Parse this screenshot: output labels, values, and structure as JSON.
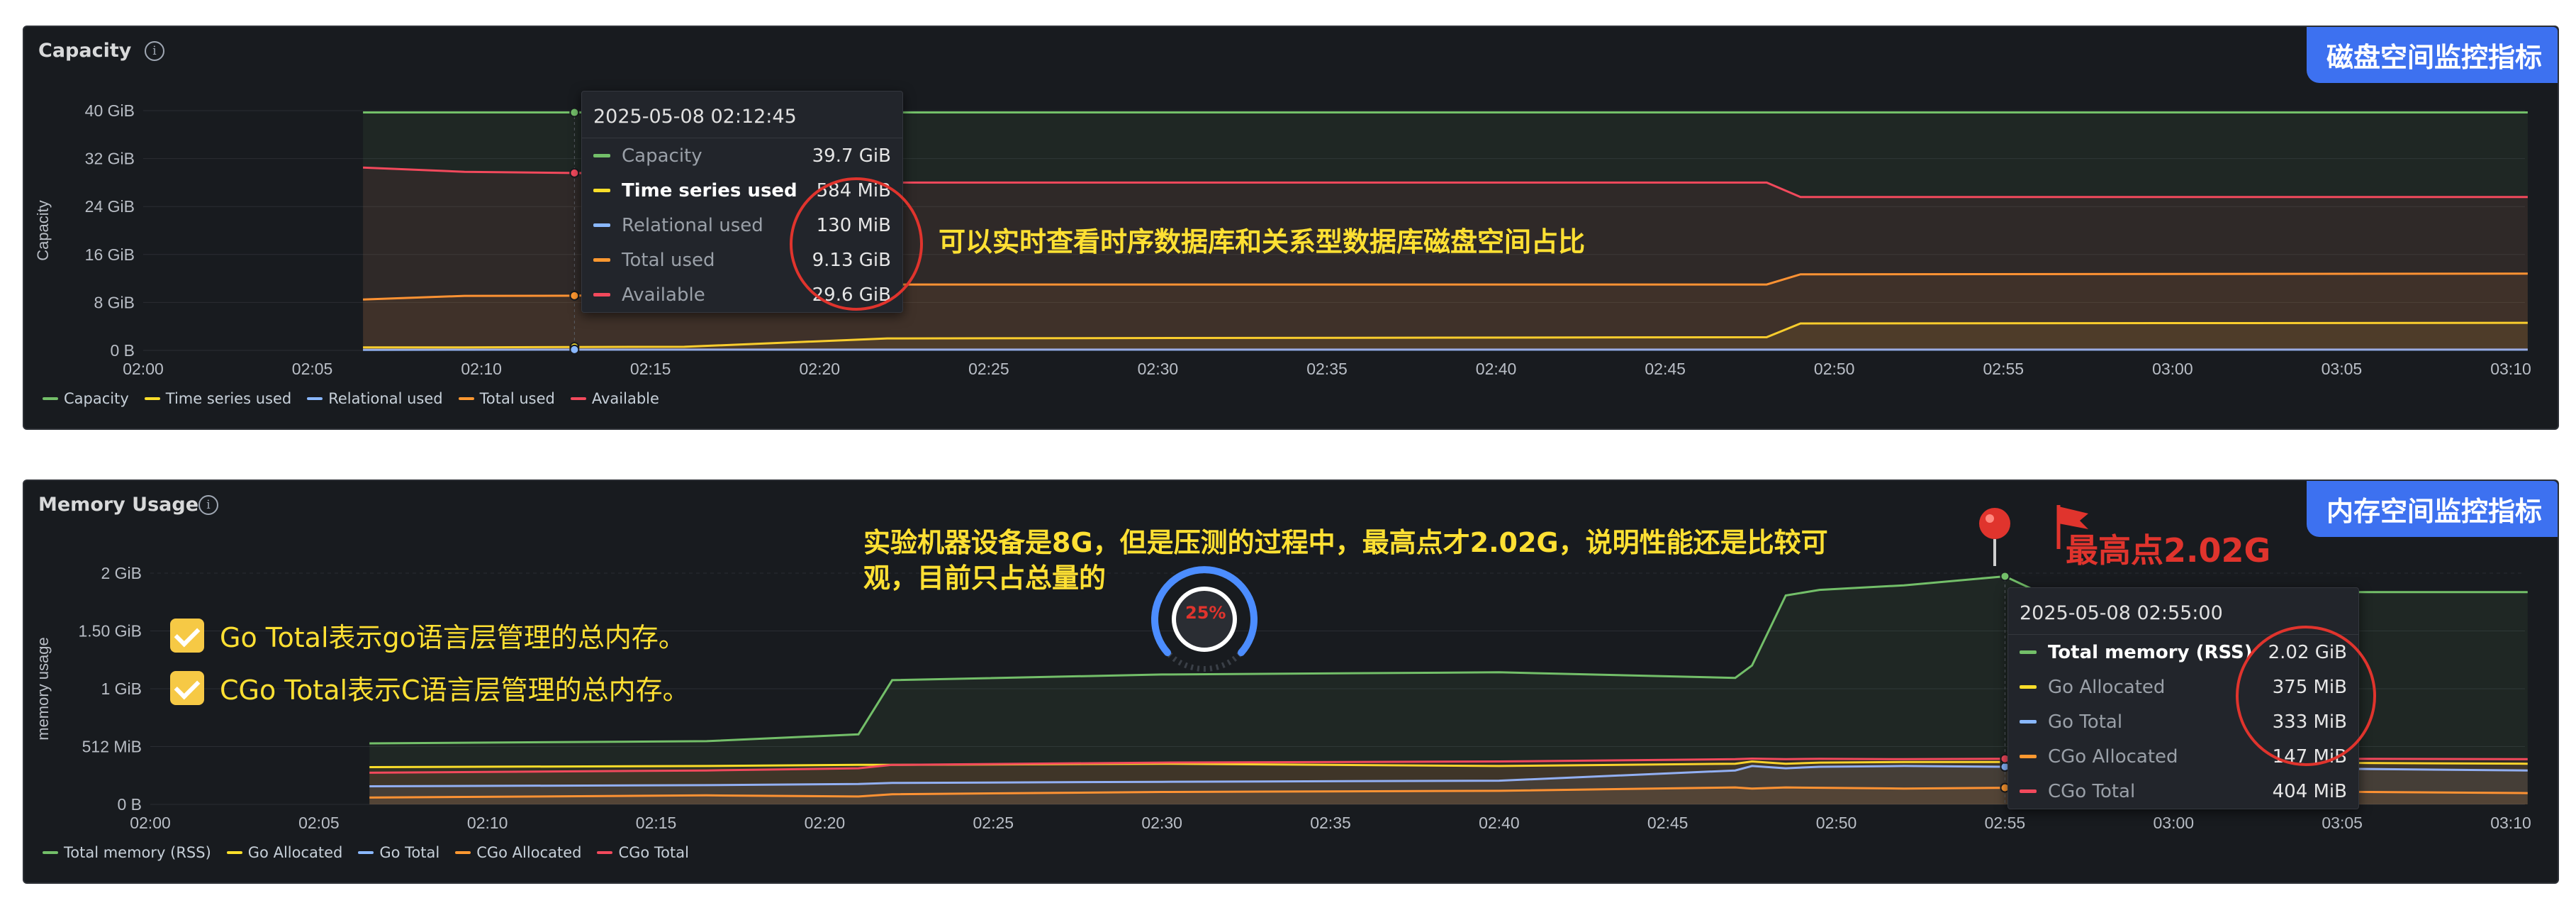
{
  "capacity": {
    "title": "Capacity",
    "tag": "磁盘空间监控指标",
    "ylabel": "Capacity",
    "annotation": "可以实时查看时序数据库和关系型数据库磁盘空间占比",
    "legend": [
      {
        "name": "Capacity",
        "color": "#73bf69"
      },
      {
        "name": "Time series used",
        "color": "#fade2a"
      },
      {
        "name": "Relational used",
        "color": "#8ab8ff"
      },
      {
        "name": "Total used",
        "color": "#ff9830"
      },
      {
        "name": "Available",
        "color": "#f2495c"
      }
    ],
    "tooltip": {
      "time": "2025-05-08 02:12:45",
      "rows": [
        {
          "name": "Capacity",
          "value": "39.7 GiB",
          "color": "#73bf69",
          "highlight": false
        },
        {
          "name": "Time series used",
          "value": "584 MiB",
          "color": "#fade2a",
          "highlight": true
        },
        {
          "name": "Relational used",
          "value": "130 MiB",
          "color": "#8ab8ff",
          "highlight": false
        },
        {
          "name": "Total used",
          "value": "9.13 GiB",
          "color": "#ff9830",
          "highlight": false
        },
        {
          "name": "Available",
          "value": "29.6 GiB",
          "color": "#f2495c",
          "highlight": false
        }
      ]
    }
  },
  "memory": {
    "title": "Memory Usage",
    "tag": "内存空间监控指标",
    "ylabel": "memory usage",
    "annotation_line1": "实验机器设备是8G，但是压测的过程中，最高点才2.02G，说明性能还是比较可",
    "annotation_line2": "观，目前只占总量的",
    "peak_label": "最高点2.02G",
    "gauge_label": "25%",
    "checks": [
      "Go Total表示go语言层管理的总内存。",
      "CGo Total表示C语言层管理的总内存。"
    ],
    "legend": [
      {
        "name": "Total memory (RSS)",
        "color": "#73bf69"
      },
      {
        "name": "Go Allocated",
        "color": "#fade2a"
      },
      {
        "name": "Go Total",
        "color": "#8ab8ff"
      },
      {
        "name": "CGo Allocated",
        "color": "#ff9830"
      },
      {
        "name": "CGo Total",
        "color": "#f2495c"
      }
    ],
    "tooltip": {
      "time": "2025-05-08 02:55:00",
      "rows": [
        {
          "name": "Total memory (RSS)",
          "value": "2.02 GiB",
          "color": "#73bf69",
          "highlight": true
        },
        {
          "name": "Go Allocated",
          "value": "375 MiB",
          "color": "#fade2a",
          "highlight": false
        },
        {
          "name": "Go Total",
          "value": "333 MiB",
          "color": "#8ab8ff",
          "highlight": false
        },
        {
          "name": "CGo Allocated",
          "value": "147 MiB",
          "color": "#ff9830",
          "highlight": false
        },
        {
          "name": "CGo Total",
          "value": "404 MiB",
          "color": "#f2495c",
          "highlight": false
        }
      ]
    }
  },
  "chart_data": [
    {
      "type": "area",
      "title": "Capacity",
      "ylabel": "Capacity",
      "y_ticks": [
        "0 B",
        "8 GiB",
        "16 GiB",
        "24 GiB",
        "32 GiB",
        "40 GiB"
      ],
      "ylim": [
        0,
        40
      ],
      "x_ticks": [
        "02:00",
        "02:05",
        "02:10",
        "02:15",
        "02:20",
        "02:25",
        "02:30",
        "02:35",
        "02:40",
        "02:45",
        "02:50",
        "02:55",
        "03:00",
        "03:05",
        "03:10"
      ],
      "x": [
        6.5,
        9.5,
        12.75,
        16,
        22,
        48,
        49,
        70.5
      ],
      "series": [
        {
          "name": "Capacity",
          "values": [
            39.7,
            39.7,
            39.7,
            39.7,
            39.7,
            39.7,
            39.7,
            39.7
          ]
        },
        {
          "name": "Time series used",
          "values": [
            0.5,
            0.5,
            0.57,
            0.6,
            2.0,
            2.2,
            4.5,
            4.6
          ]
        },
        {
          "name": "Relational used",
          "values": [
            0.1,
            0.12,
            0.13,
            0.13,
            0.13,
            0.13,
            0.13,
            0.13
          ]
        },
        {
          "name": "Total used",
          "values": [
            8.5,
            9.1,
            9.13,
            9.5,
            11,
            11,
            12.7,
            12.8
          ]
        },
        {
          "name": "Available",
          "values": [
            30.5,
            29.8,
            29.6,
            29.4,
            28.0,
            28.0,
            25.6,
            25.6
          ]
        }
      ]
    },
    {
      "type": "area",
      "title": "Memory Usage",
      "ylabel": "memory usage",
      "y_ticks": [
        "0 B",
        "512 MiB",
        "1 GiB",
        "1.50 GiB",
        "2 GiB"
      ],
      "ylim": [
        0,
        2048
      ],
      "x_ticks": [
        "02:00",
        "02:05",
        "02:10",
        "02:15",
        "02:20",
        "02:25",
        "02:30",
        "02:35",
        "02:40",
        "02:45",
        "02:50",
        "02:55",
        "03:00",
        "03:05",
        "03:10"
      ],
      "x": [
        6.5,
        16.5,
        21,
        22,
        30,
        40,
        47,
        47.5,
        48.5,
        49.5,
        52,
        55,
        56,
        70.5
      ],
      "series": [
        {
          "name": "Total memory (RSS)",
          "values": [
            540,
            560,
            620,
            1100,
            1150,
            1170,
            1120,
            1230,
            1850,
            1900,
            1940,
            2020,
            1880,
            1880
          ]
        },
        {
          "name": "Go Allocated",
          "values": [
            330,
            340,
            350,
            350,
            360,
            340,
            360,
            380,
            360,
            370,
            375,
            375,
            380,
            360
          ]
        },
        {
          "name": "Go Total",
          "values": [
            160,
            170,
            180,
            190,
            200,
            210,
            300,
            340,
            320,
            333,
            340,
            333,
            340,
            300
          ]
        },
        {
          "name": "CGo Allocated",
          "values": [
            60,
            80,
            70,
            90,
            110,
            120,
            150,
            140,
            150,
            147,
            140,
            147,
            130,
            100
          ]
        },
        {
          "name": "CGo Total",
          "values": [
            280,
            300,
            320,
            350,
            370,
            380,
            400,
            405,
            400,
            404,
            400,
            404,
            410,
            400
          ]
        }
      ]
    }
  ]
}
